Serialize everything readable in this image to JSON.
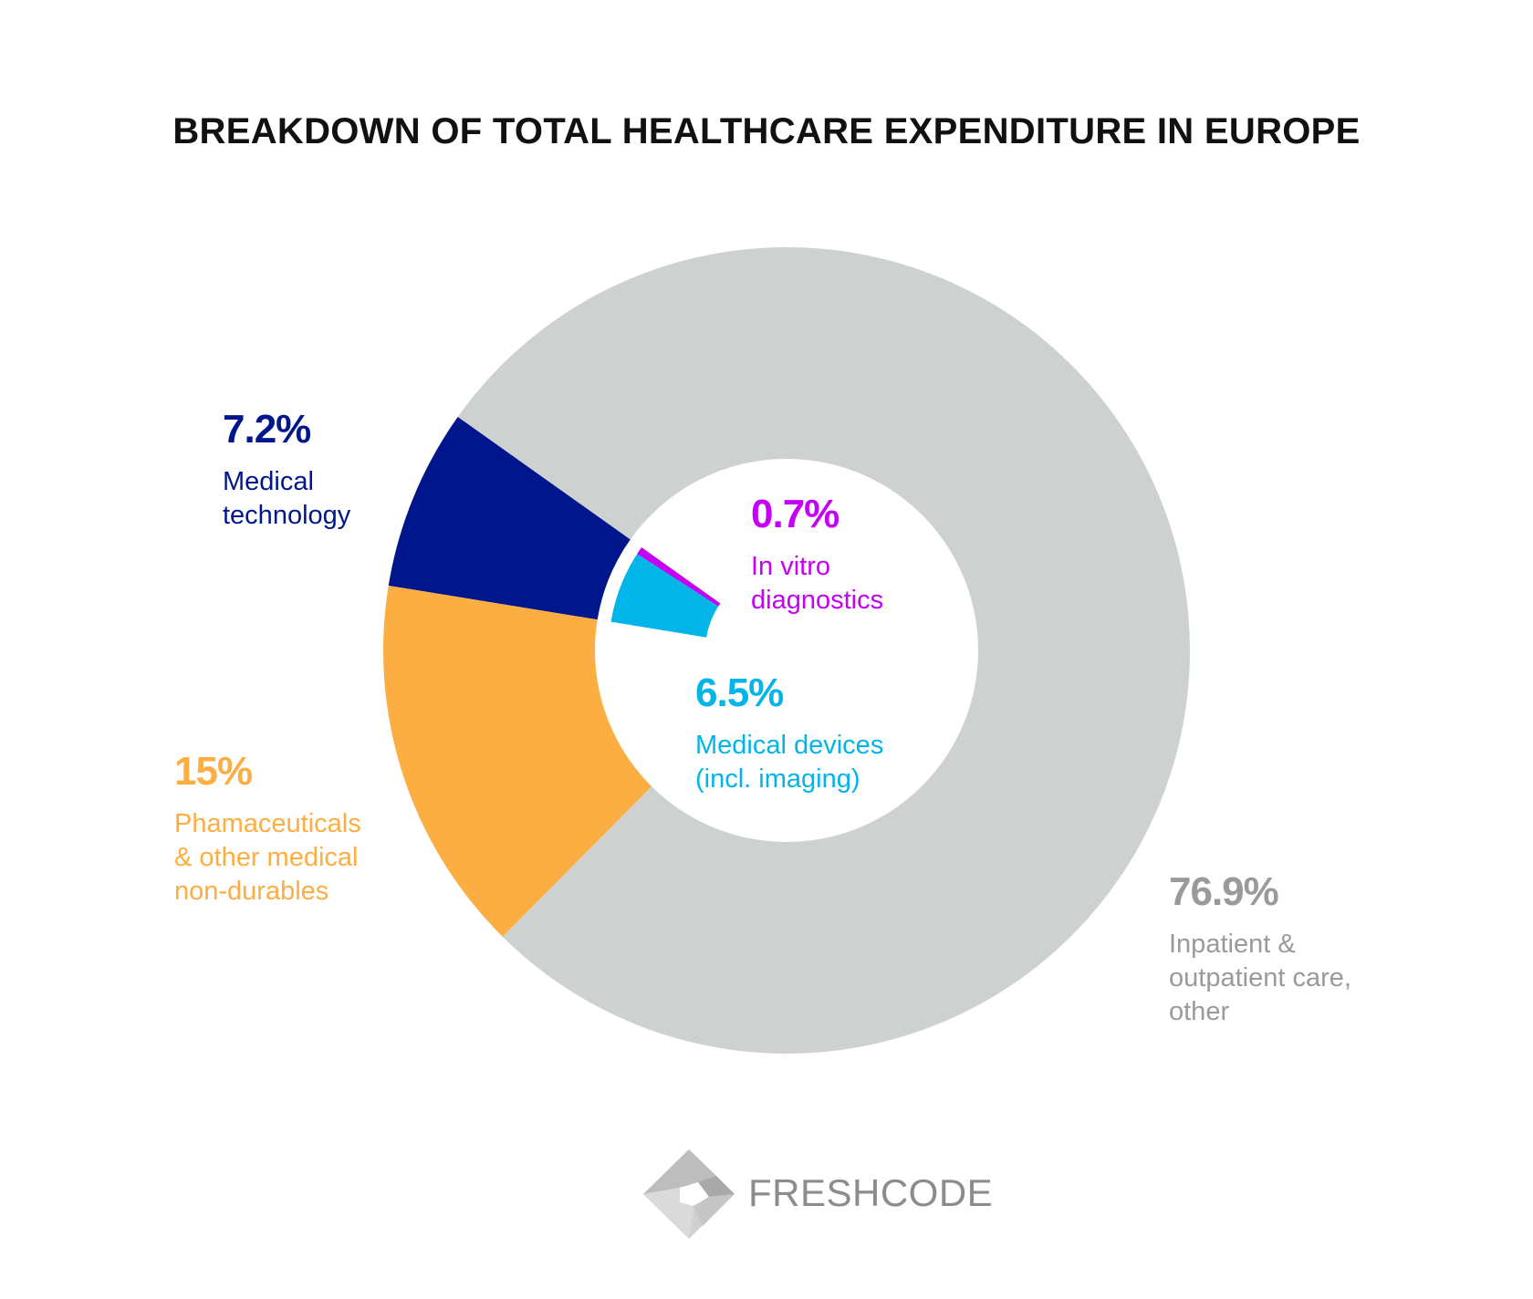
{
  "chart_data": {
    "type": "pie",
    "title": "BREAKDOWN OF TOTAL HEALTHCARE EXPENDITURE IN EUROPE",
    "style": "donut",
    "slices": [
      {
        "key": "medtech",
        "value": 7.2,
        "label": "7.2%",
        "desc": [
          "Medical",
          "technology"
        ],
        "color": "#00168c"
      },
      {
        "key": "pharma",
        "value": 15,
        "label": "15%",
        "desc": [
          "Phamaceuticals",
          "& other medical",
          "non-durables"
        ],
        "color": "#fdae42"
      },
      {
        "key": "care",
        "value": 76.9,
        "label": "76.9%",
        "desc": [
          "Inpatient &",
          "outpatient care,",
          "other"
        ],
        "color": "#cdd2d0",
        "text_color": "#9a9a9a"
      }
    ],
    "sub_slices_of_medtech": [
      {
        "key": "ivd",
        "value": 0.7,
        "label": "0.7%",
        "desc": [
          "In vitro",
          "diagnostics"
        ],
        "color": "#c400f5"
      },
      {
        "key": "devices",
        "value": 6.5,
        "label": "6.5%",
        "desc": [
          "Medical devices",
          "(incl. imaging)"
        ],
        "color": "#02b5e8"
      }
    ]
  },
  "brand": {
    "name": "FRESHCODE"
  }
}
